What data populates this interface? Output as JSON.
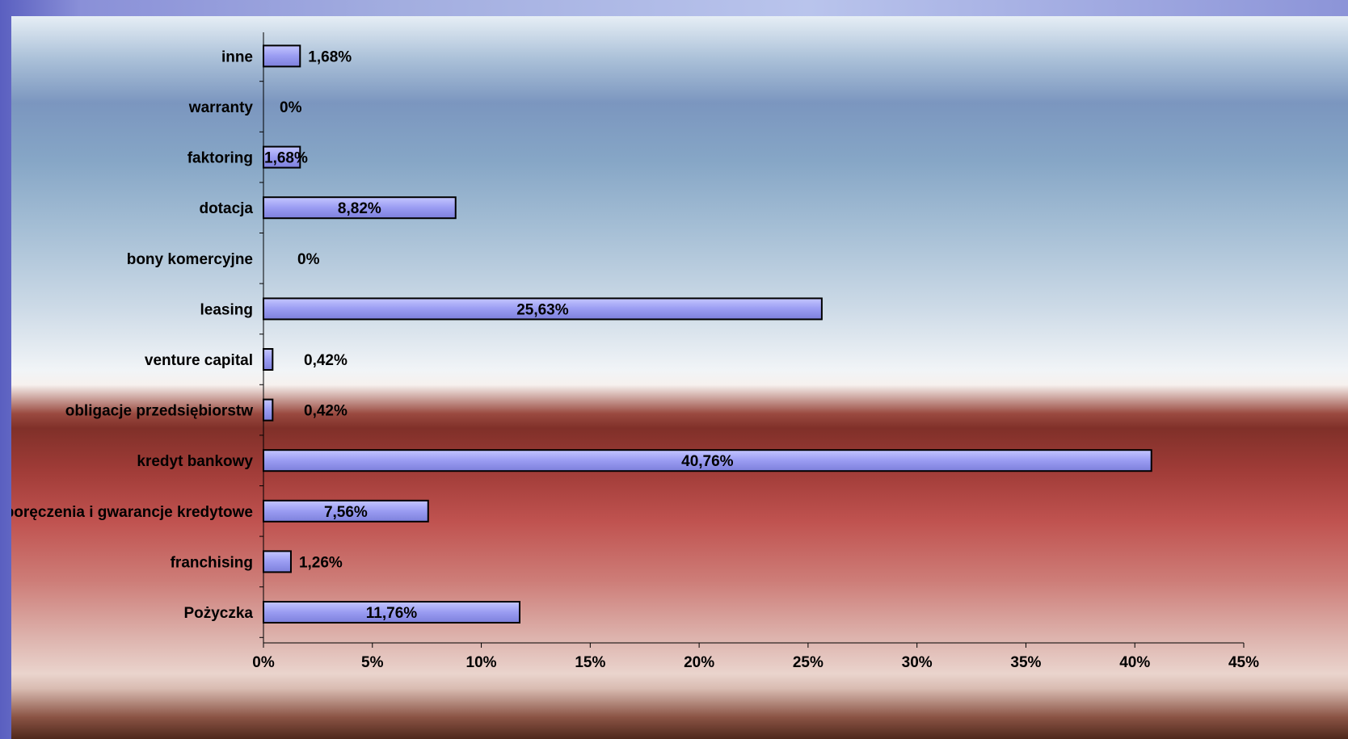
{
  "chart_data": {
    "type": "bar",
    "orientation": "horizontal",
    "categories": [
      "Pożyczka",
      "franchising",
      "poręczenia i gwarancje kredytowe",
      "kredyt bankowy",
      "obligacje przedsiębiorstw",
      "venture capital",
      "leasing",
      "bony komercyjne",
      "dotacja",
      "faktoring",
      "warranty",
      "inne"
    ],
    "values": [
      11.76,
      1.26,
      7.56,
      40.76,
      0.42,
      0.42,
      25.63,
      0,
      8.82,
      1.68,
      0,
      1.68
    ],
    "value_labels": [
      "11,76%",
      "1,26%",
      "7,56%",
      "40,76%",
      "0,42%",
      "0,42%",
      "25,63%",
      "0%",
      "8,82%",
      "1,68%",
      "0%",
      "1,68%"
    ],
    "xlim": [
      0,
      45
    ],
    "x_ticks": [
      "0%",
      "5%",
      "10%",
      "15%",
      "20%",
      "25%",
      "30%",
      "35%",
      "40%",
      "45%"
    ],
    "title": "",
    "xlabel": "",
    "ylabel": "",
    "grid": false,
    "legend": "none",
    "colors": {
      "bar_fill": "#9a9cf2",
      "bar_stroke": "#000000"
    }
  }
}
